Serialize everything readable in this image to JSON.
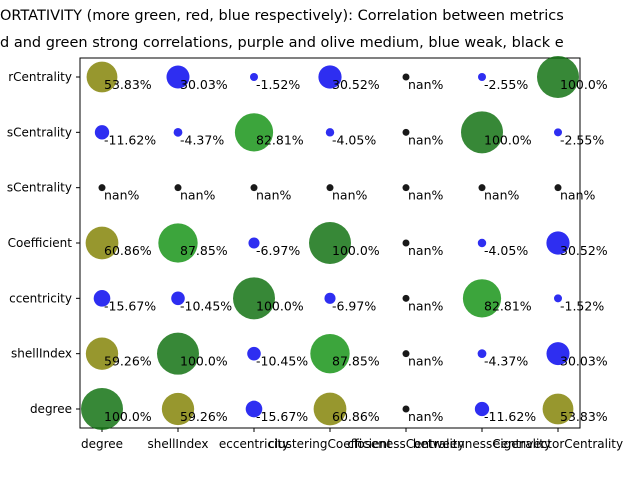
{
  "chart_data": {
    "type": "scatter",
    "title_lines": [
      "ORTATIVITY (more green, red, blue respectively): Correlation between metrics",
      "d and green strong correlations, purple and olive medium, blue weak, black e"
    ],
    "x_tick_labels": [
      "degree",
      "shellIndex",
      "eccentricity",
      "clusteringCoefficient",
      "closenessCentrality",
      "betweennessCentrality",
      "eigenvectorCentrality"
    ],
    "y_tick_labels": [
      "degree",
      "shellIndex",
      "eccentricity",
      "clusteringCoefficient",
      "closenessCentrality",
      "betweennessCentrality",
      "eigenvectorCentrality"
    ],
    "y_tick_labels_visible": [
      "degree",
      "shellIndex",
      "ccentricity",
      "Coefficient",
      "sCentrality",
      "sCentrality",
      "rCentrality"
    ],
    "grid": false,
    "legend": "none",
    "colors": {
      "strong_self": "#0b6e0b",
      "strong": "#119111",
      "medium": "#808000",
      "weak": "#0000ee",
      "none": "#000000"
    },
    "points": [
      {
        "x": "degree",
        "y": "degree",
        "label": "100.0%",
        "value": 1.0,
        "color": "strong_self"
      },
      {
        "x": "shellIndex",
        "y": "degree",
        "label": "59.26%",
        "value": 0.5926,
        "color": "medium"
      },
      {
        "x": "eccentricity",
        "y": "degree",
        "label": "-15.67%",
        "value": -0.1567,
        "color": "weak"
      },
      {
        "x": "clusteringCoefficient",
        "y": "degree",
        "label": "60.86%",
        "value": 0.6086,
        "color": "medium"
      },
      {
        "x": "closenessCentrality",
        "y": "degree",
        "label": "nan%",
        "value": null,
        "color": "none"
      },
      {
        "x": "betweennessCentrality",
        "y": "degree",
        "label": "-11.62%",
        "value": -0.1162,
        "color": "weak"
      },
      {
        "x": "eigenvectorCentrality",
        "y": "degree",
        "label": "53.83%",
        "value": 0.5383,
        "color": "medium"
      },
      {
        "x": "degree",
        "y": "shellIndex",
        "label": "59.26%",
        "value": 0.5926,
        "color": "medium"
      },
      {
        "x": "shellIndex",
        "y": "shellIndex",
        "label": "100.0%",
        "value": 1.0,
        "color": "strong_self"
      },
      {
        "x": "eccentricity",
        "y": "shellIndex",
        "label": "-10.45%",
        "value": -0.1045,
        "color": "weak"
      },
      {
        "x": "clusteringCoefficient",
        "y": "shellIndex",
        "label": "87.85%",
        "value": 0.8785,
        "color": "strong"
      },
      {
        "x": "closenessCentrality",
        "y": "shellIndex",
        "label": "nan%",
        "value": null,
        "color": "none"
      },
      {
        "x": "betweennessCentrality",
        "y": "shellIndex",
        "label": "-4.37%",
        "value": -0.0437,
        "color": "weak"
      },
      {
        "x": "eigenvectorCentrality",
        "y": "shellIndex",
        "label": "30.03%",
        "value": 0.3003,
        "color": "weak"
      },
      {
        "x": "degree",
        "y": "eccentricity",
        "label": "-15.67%",
        "value": -0.1567,
        "color": "weak"
      },
      {
        "x": "shellIndex",
        "y": "eccentricity",
        "label": "-10.45%",
        "value": -0.1045,
        "color": "weak"
      },
      {
        "x": "eccentricity",
        "y": "eccentricity",
        "label": "100.0%",
        "value": 1.0,
        "color": "strong_self"
      },
      {
        "x": "clusteringCoefficient",
        "y": "eccentricity",
        "label": "-6.97%",
        "value": -0.0697,
        "color": "weak"
      },
      {
        "x": "closenessCentrality",
        "y": "eccentricity",
        "label": "nan%",
        "value": null,
        "color": "none"
      },
      {
        "x": "betweennessCentrality",
        "y": "eccentricity",
        "label": "82.81%",
        "value": 0.8281,
        "color": "strong"
      },
      {
        "x": "eigenvectorCentrality",
        "y": "eccentricity",
        "label": "-1.52%",
        "value": -0.0152,
        "color": "weak"
      },
      {
        "x": "degree",
        "y": "clusteringCoefficient",
        "label": "60.86%",
        "value": 0.6086,
        "color": "medium"
      },
      {
        "x": "shellIndex",
        "y": "clusteringCoefficient",
        "label": "87.85%",
        "value": 0.8785,
        "color": "strong"
      },
      {
        "x": "eccentricity",
        "y": "clusteringCoefficient",
        "label": "-6.97%",
        "value": -0.0697,
        "color": "weak"
      },
      {
        "x": "clusteringCoefficient",
        "y": "clusteringCoefficient",
        "label": "100.0%",
        "value": 1.0,
        "color": "strong_self"
      },
      {
        "x": "closenessCentrality",
        "y": "clusteringCoefficient",
        "label": "nan%",
        "value": null,
        "color": "none"
      },
      {
        "x": "betweennessCentrality",
        "y": "clusteringCoefficient",
        "label": "-4.05%",
        "value": -0.0405,
        "color": "weak"
      },
      {
        "x": "eigenvectorCentrality",
        "y": "clusteringCoefficient",
        "label": "30.52%",
        "value": 0.3052,
        "color": "weak"
      },
      {
        "x": "degree",
        "y": "closenessCentrality",
        "label": "nan%",
        "value": null,
        "color": "none"
      },
      {
        "x": "shellIndex",
        "y": "closenessCentrality",
        "label": "nan%",
        "value": null,
        "color": "none"
      },
      {
        "x": "eccentricity",
        "y": "closenessCentrality",
        "label": "nan%",
        "value": null,
        "color": "none"
      },
      {
        "x": "clusteringCoefficient",
        "y": "closenessCentrality",
        "label": "nan%",
        "value": null,
        "color": "none"
      },
      {
        "x": "closenessCentrality",
        "y": "closenessCentrality",
        "label": "nan%",
        "value": null,
        "color": "none"
      },
      {
        "x": "betweennessCentrality",
        "y": "closenessCentrality",
        "label": "nan%",
        "value": null,
        "color": "none"
      },
      {
        "x": "eigenvectorCentrality",
        "y": "closenessCentrality",
        "label": "nan%",
        "value": null,
        "color": "none"
      },
      {
        "x": "degree",
        "y": "betweennessCentrality",
        "label": "-11.62%",
        "value": -0.1162,
        "color": "weak"
      },
      {
        "x": "shellIndex",
        "y": "betweennessCentrality",
        "label": "-4.37%",
        "value": -0.0437,
        "color": "weak"
      },
      {
        "x": "eccentricity",
        "y": "betweennessCentrality",
        "label": "82.81%",
        "value": 0.8281,
        "color": "strong"
      },
      {
        "x": "clusteringCoefficient",
        "y": "betweennessCentrality",
        "label": "-4.05%",
        "value": -0.0405,
        "color": "weak"
      },
      {
        "x": "closenessCentrality",
        "y": "betweennessCentrality",
        "label": "nan%",
        "value": null,
        "color": "none"
      },
      {
        "x": "betweennessCentrality",
        "y": "betweennessCentrality",
        "label": "100.0%",
        "value": 1.0,
        "color": "strong_self"
      },
      {
        "x": "eigenvectorCentrality",
        "y": "betweennessCentrality",
        "label": "-2.55%",
        "value": -0.0255,
        "color": "weak"
      },
      {
        "x": "degree",
        "y": "eigenvectorCentrality",
        "label": "53.83%",
        "value": 0.5383,
        "color": "medium"
      },
      {
        "x": "shellIndex",
        "y": "eigenvectorCentrality",
        "label": "30.03%",
        "value": 0.3003,
        "color": "weak"
      },
      {
        "x": "eccentricity",
        "y": "eigenvectorCentrality",
        "label": "-1.52%",
        "value": -0.0152,
        "color": "weak"
      },
      {
        "x": "clusteringCoefficient",
        "y": "eigenvectorCentrality",
        "label": "30.52%",
        "value": 0.3052,
        "color": "weak"
      },
      {
        "x": "closenessCentrality",
        "y": "eigenvectorCentrality",
        "label": "nan%",
        "value": null,
        "color": "none"
      },
      {
        "x": "betweennessCentrality",
        "y": "eigenvectorCentrality",
        "label": "-2.55%",
        "value": -0.0255,
        "color": "weak"
      },
      {
        "x": "eigenvectorCentrality",
        "y": "eigenvectorCentrality",
        "label": "100.0%",
        "value": 1.0,
        "color": "strong_self"
      }
    ]
  }
}
